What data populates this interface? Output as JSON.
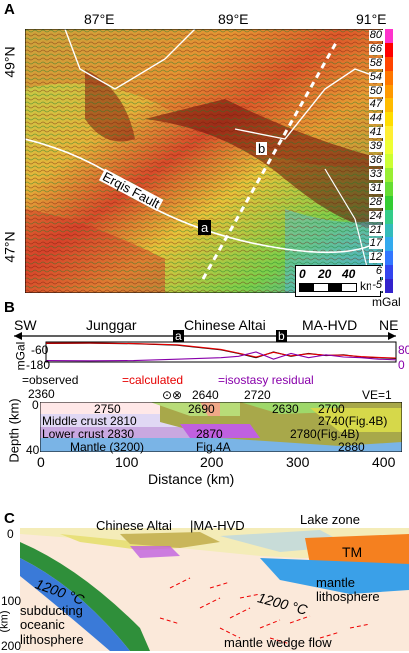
{
  "panel_a": {
    "letter": "A",
    "lon_labels": [
      "87°E",
      "89°E",
      "91°E"
    ],
    "lat_labels": [
      "49°N",
      "47°N"
    ],
    "fault_label": "Erqis Fault",
    "marker_a": "a",
    "marker_b": "b",
    "colorbar": {
      "ticks": [
        "80",
        "66",
        "58",
        "54",
        "50",
        "47",
        "44",
        "41",
        "39",
        "36",
        "33",
        "31",
        "28",
        "24",
        "21",
        "17",
        "12",
        "6",
        "-5"
      ],
      "unit": "mGal",
      "colors": [
        "#ff33cc",
        "#ff0000",
        "#ff4400",
        "#ff7700",
        "#ff9900",
        "#ffbb00",
        "#ffdd00",
        "#ffee33",
        "#eeff33",
        "#ccff33",
        "#99ee33",
        "#66dd33",
        "#33cc33",
        "#33cc88",
        "#33bbbb",
        "#33aaee",
        "#3377ff",
        "#3344ee",
        "#3322cc"
      ]
    },
    "scale": {
      "labels": [
        "0",
        "20",
        "40"
      ],
      "unit": "km"
    }
  },
  "panel_b": {
    "letter": "B",
    "ends": [
      "SW",
      "NE"
    ],
    "regions": [
      "Junggar",
      "Chinese Altai",
      "MA-HVD"
    ],
    "markers": [
      "a",
      "b"
    ],
    "left_axis": {
      "label": "mGal",
      "ticks": [
        "-60",
        "-180"
      ]
    },
    "right_axis": {
      "ticks": [
        "80",
        "0"
      ]
    },
    "legend": [
      "=observed",
      "=calculated",
      "=isostasy residual"
    ],
    "densities": [
      "2360",
      "2750",
      "2640",
      "2720",
      "2690",
      "2630",
      "2700",
      "2740(Fig.4B)",
      "2780(Fig.4B)",
      "2880",
      "(3200)"
    ],
    "layers": [
      "Middle crust 2810",
      "Lower crust 2830",
      "Mantle (3200)",
      "2870",
      "Fig.4A"
    ],
    "symbols": "⊙⊗",
    "ve": "VE=1",
    "depth_axis": {
      "label": "Depth (km)",
      "ticks": [
        "0",
        "40"
      ]
    },
    "distance_axis": {
      "label": "Distance (km)",
      "ticks": [
        "0",
        "100",
        "200",
        "300",
        "400"
      ]
    },
    "series_colors": {
      "observed": "#000000",
      "calculated": "#e60000",
      "residual": "#8800aa"
    }
  },
  "panel_c": {
    "letter": "C",
    "regions": [
      "Chinese Altai",
      "|MA-HVD"
    ],
    "lake_zone": "Lake zone",
    "tm": "TM",
    "labels": {
      "mantle_lith": "mantle\nlithosphere",
      "temp1": "1200 °C",
      "temp2": "1200 °C",
      "subducting": "subducting\noceanic\nlithosphere",
      "wedge": "mantle wedge flow"
    },
    "depth_ticks": [
      "0",
      "100",
      "200"
    ],
    "depth_unit": "(km)"
  },
  "chart_data": [
    {
      "type": "line",
      "title": "",
      "xlabel": "Distance (km)",
      "ylabel": "mGal",
      "x": [
        0,
        50,
        100,
        150,
        200,
        220,
        240,
        260,
        280,
        300,
        320,
        340,
        360,
        380,
        400
      ],
      "series": [
        {
          "name": "observed",
          "values": [
            -50,
            -48,
            -52,
            -62,
            -95,
            -120,
            -150,
            -110,
            -140,
            -120,
            -135,
            -130,
            -145,
            -150,
            -155
          ]
        },
        {
          "name": "calculated",
          "values": [
            -48,
            -47,
            -51,
            -60,
            -92,
            -118,
            -145,
            -112,
            -137,
            -123,
            -132,
            -132,
            -142,
            -148,
            -152
          ]
        },
        {
          "name": "isostasy residual",
          "values": [
            -170,
            -172,
            -170,
            -160,
            -150,
            -140,
            -110,
            -160,
            -120,
            -150,
            -130,
            -145,
            -150,
            -160,
            -165
          ]
        }
      ],
      "ylim": [
        -180,
        -40
      ],
      "xlim": [
        0,
        400
      ]
    }
  ]
}
